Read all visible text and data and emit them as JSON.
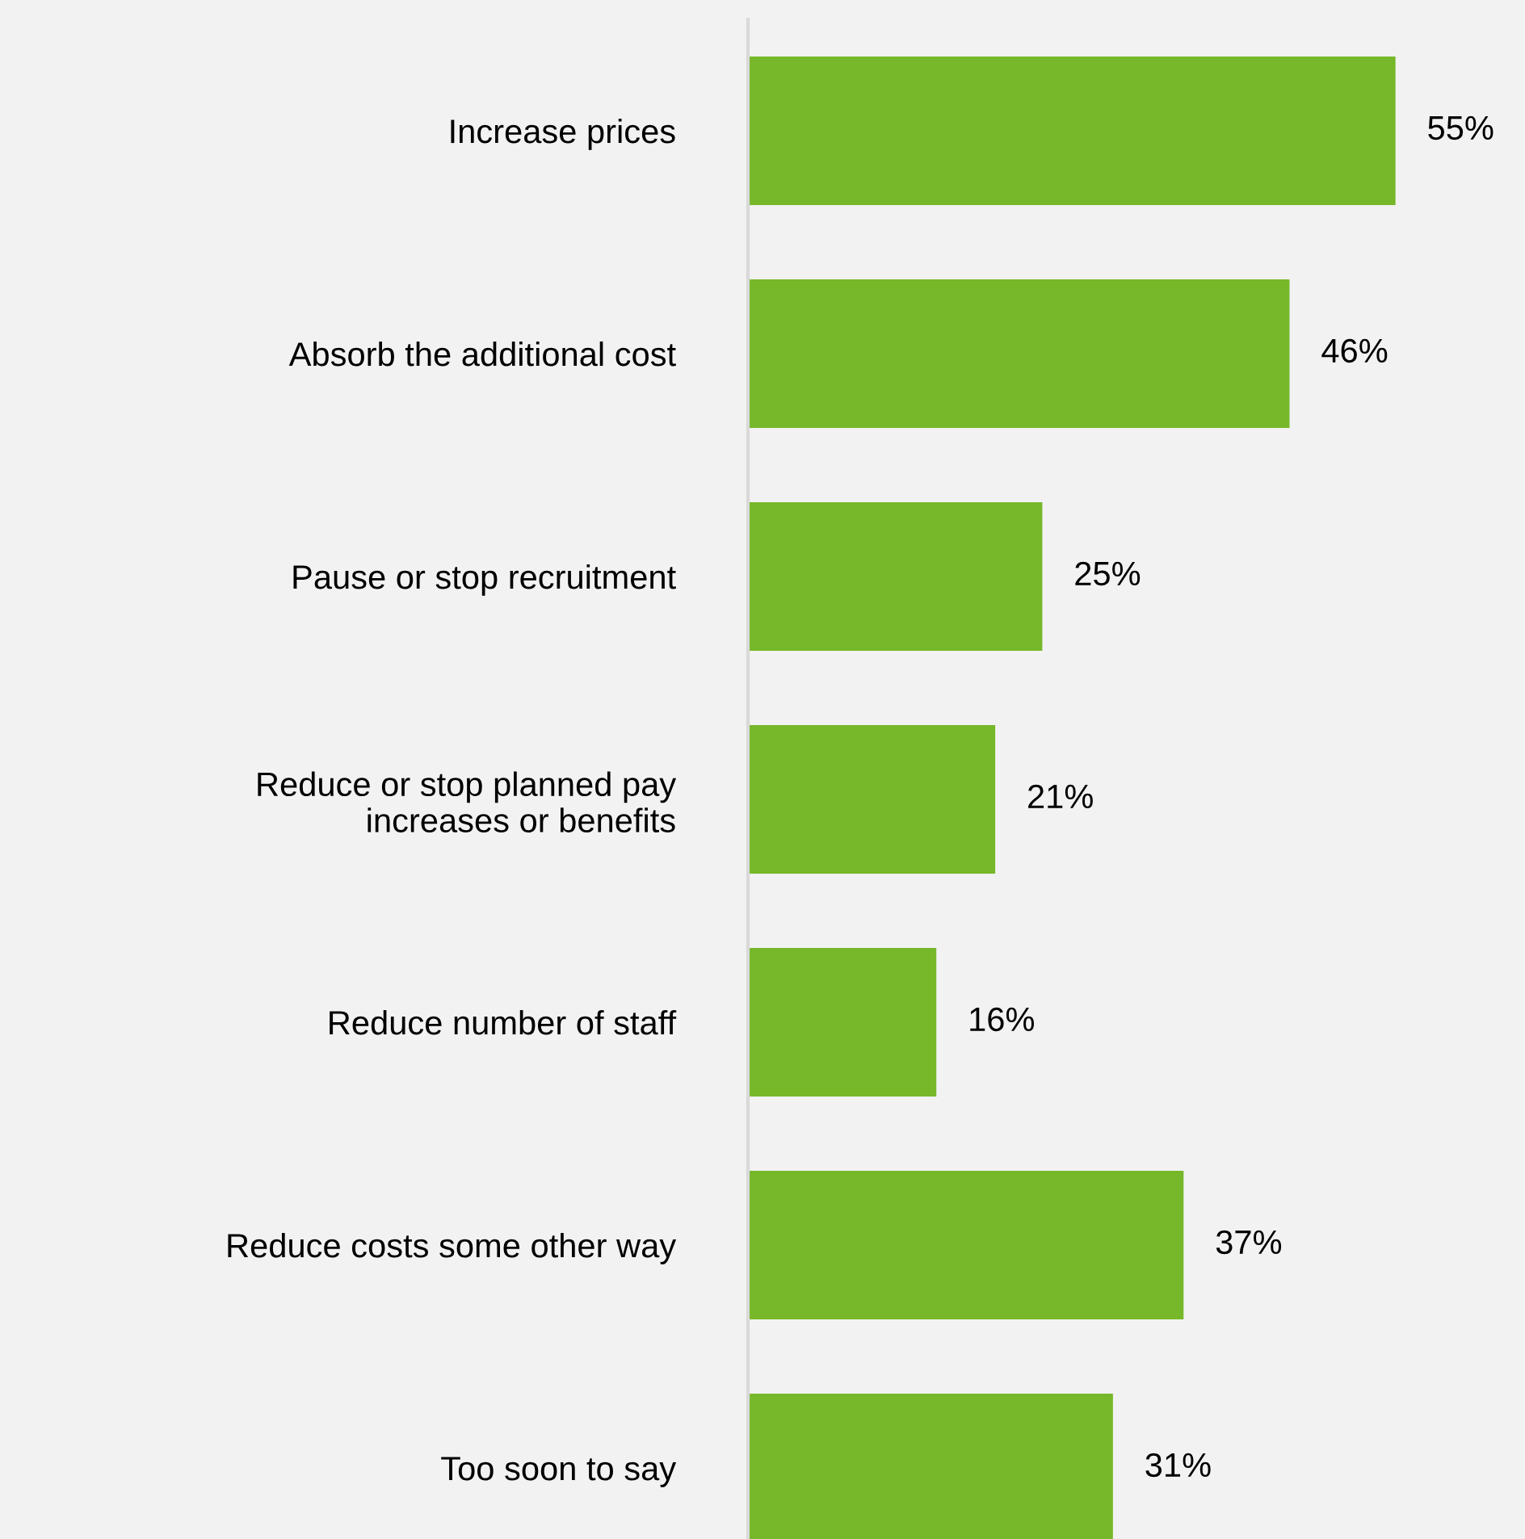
{
  "chart_data": {
    "type": "bar",
    "orientation": "horizontal",
    "categories": [
      "Increase prices",
      "Absorb the additional cost",
      "Pause or stop recruitment",
      "Reduce or stop planned pay\nincreases or benefits",
      "Reduce number of staff",
      "Reduce costs some other way",
      "Too soon to say"
    ],
    "values": [
      55,
      46,
      25,
      21,
      16,
      37,
      31
    ],
    "value_labels": [
      "55%",
      "46%",
      "25%",
      "21%",
      "16%",
      "37%",
      "31%"
    ],
    "color": "#76b82a",
    "xlim": [
      0,
      66
    ],
    "tick_labels": "y",
    "grid": false,
    "legend": false
  }
}
